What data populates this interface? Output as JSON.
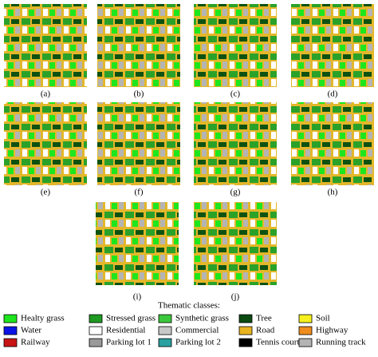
{
  "figure": {
    "panels": [
      "(a)",
      "(b)",
      "(c)",
      "(d)",
      "(e)",
      "(f)",
      "(g)",
      "(h)",
      "(i)",
      "(j)"
    ],
    "legend_title": "Thematic classes:",
    "classes": [
      {
        "name": "Healty grass",
        "color": "#1ee61e"
      },
      {
        "name": "Stressed grass",
        "color": "#1f9a22"
      },
      {
        "name": "Synthetic grass",
        "color": "#3cc83c"
      },
      {
        "name": "Tree",
        "color": "#0b4a10"
      },
      {
        "name": "Soil",
        "color": "#f5f01e"
      },
      {
        "name": "Water",
        "color": "#0a14e6"
      },
      {
        "name": "Residential",
        "color": "#ffffff"
      },
      {
        "name": "Commercial",
        "color": "#c8c8c8"
      },
      {
        "name": "Road",
        "color": "#e8b420"
      },
      {
        "name": "Highway",
        "color": "#f08c1e"
      },
      {
        "name": "Railway",
        "color": "#c81414"
      },
      {
        "name": "Parking lot 1",
        "color": "#9a9a9a"
      },
      {
        "name": "Parking lot 2",
        "color": "#2aa0a0"
      },
      {
        "name": "Tennis court",
        "color": "#000000"
      },
      {
        "name": "Running track",
        "color": "#b4b4b4"
      }
    ]
  }
}
